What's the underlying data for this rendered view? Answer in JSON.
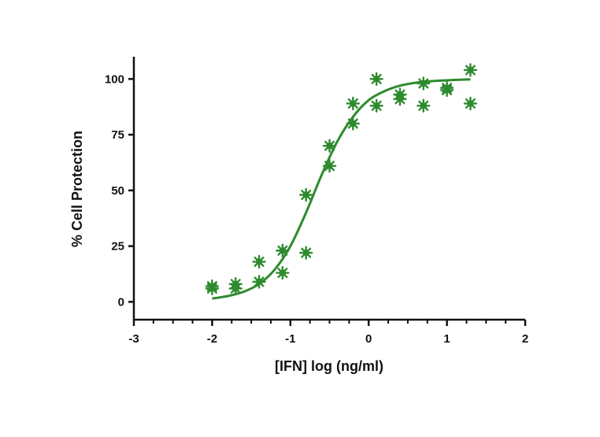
{
  "chart_data": {
    "type": "scatter",
    "title": "",
    "xlabel": "[IFN] log (ng/ml)",
    "ylabel": "% Cell Protection",
    "xlim": [
      -3,
      2
    ],
    "ylim": [
      -8,
      110
    ],
    "x_ticks": [
      -3,
      -2,
      -1,
      0,
      1,
      2
    ],
    "x_tick_labels": [
      "-3",
      "-2",
      "-1",
      "0",
      "1",
      "2"
    ],
    "y_ticks": [
      0,
      25,
      50,
      75,
      100
    ],
    "y_tick_labels": [
      "0",
      "25",
      "50",
      "75",
      "100"
    ],
    "grid": false,
    "legend": "none",
    "series": [
      {
        "type": "scatter",
        "color": "#2e8b2e",
        "marker": "star",
        "points": [
          {
            "x": -2.0,
            "y": 7
          },
          {
            "x": -2.0,
            "y": 6
          },
          {
            "x": -1.7,
            "y": 8
          },
          {
            "x": -1.7,
            "y": 6
          },
          {
            "x": -1.4,
            "y": 18
          },
          {
            "x": -1.4,
            "y": 9
          },
          {
            "x": -1.1,
            "y": 23
          },
          {
            "x": -1.1,
            "y": 13
          },
          {
            "x": -0.8,
            "y": 48
          },
          {
            "x": -0.8,
            "y": 22
          },
          {
            "x": -0.5,
            "y": 70
          },
          {
            "x": -0.5,
            "y": 61
          },
          {
            "x": -0.2,
            "y": 89
          },
          {
            "x": -0.2,
            "y": 80
          },
          {
            "x": 0.1,
            "y": 100
          },
          {
            "x": 0.1,
            "y": 88
          },
          {
            "x": 0.4,
            "y": 93
          },
          {
            "x": 0.4,
            "y": 91
          },
          {
            "x": 0.7,
            "y": 98
          },
          {
            "x": 0.7,
            "y": 88
          },
          {
            "x": 1.0,
            "y": 96
          },
          {
            "x": 1.0,
            "y": 95
          },
          {
            "x": 1.3,
            "y": 104
          },
          {
            "x": 1.3,
            "y": 89
          }
        ]
      },
      {
        "type": "line",
        "color": "#2e8b2e",
        "points": [
          {
            "x": -2.0,
            "y": 1.5
          },
          {
            "x": -1.8,
            "y": 2.6
          },
          {
            "x": -1.6,
            "y": 4.5
          },
          {
            "x": -1.4,
            "y": 8.0
          },
          {
            "x": -1.2,
            "y": 14.5
          },
          {
            "x": -1.0,
            "y": 25.0
          },
          {
            "x": -0.8,
            "y": 40.0
          },
          {
            "x": -0.6,
            "y": 57.0
          },
          {
            "x": -0.4,
            "y": 72.0
          },
          {
            "x": -0.2,
            "y": 83.0
          },
          {
            "x": 0.0,
            "y": 90.5
          },
          {
            "x": 0.2,
            "y": 94.5
          },
          {
            "x": 0.4,
            "y": 97.0
          },
          {
            "x": 0.6,
            "y": 98.3
          },
          {
            "x": 0.8,
            "y": 99.0
          },
          {
            "x": 1.0,
            "y": 99.4
          },
          {
            "x": 1.2,
            "y": 99.7
          },
          {
            "x": 1.3,
            "y": 99.8
          }
        ]
      }
    ]
  }
}
